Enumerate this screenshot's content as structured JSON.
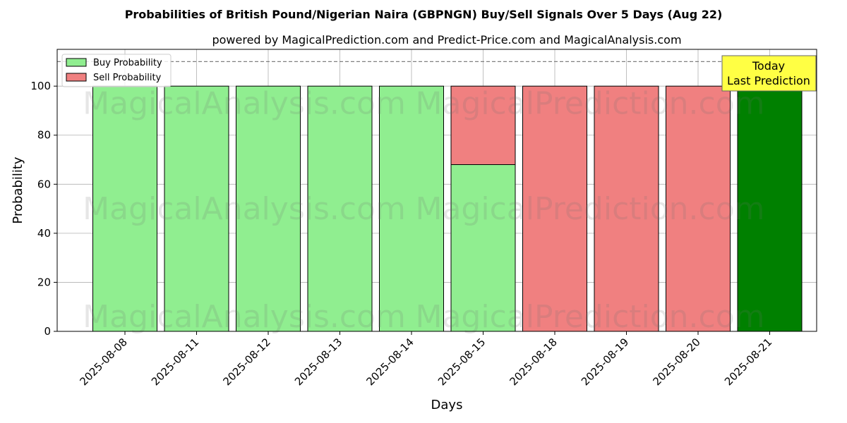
{
  "chart_data": {
    "type": "bar",
    "title": "Probabilities of British Pound/Nigerian Naira (GBPNGN) Buy/Sell Signals Over 5 Days (Aug 22)",
    "subtitle": "powered by MagicalPrediction.com and Predict-Price.com and MagicalAnalysis.com",
    "xlabel": "Days",
    "ylabel": "Probability",
    "ylim": [
      0,
      115
    ],
    "yticks": [
      0,
      20,
      40,
      60,
      80,
      100
    ],
    "grid": true,
    "legend_position": "top-left",
    "categories": [
      "2025-08-08",
      "2025-08-11",
      "2025-08-12",
      "2025-08-13",
      "2025-08-14",
      "2025-08-15",
      "2025-08-18",
      "2025-08-19",
      "2025-08-20",
      "2025-08-21"
    ],
    "series": [
      {
        "name": "Buy Probability",
        "color": "#90ee90",
        "values": [
          100,
          100,
          100,
          100,
          100,
          68,
          0,
          0,
          0,
          100
        ]
      },
      {
        "name": "Sell Probability",
        "color": "#f08080",
        "values": [
          0,
          0,
          0,
          0,
          0,
          32,
          100,
          100,
          100,
          0
        ]
      }
    ],
    "highlight": {
      "index": 9,
      "color": "#008000"
    },
    "reference_line": {
      "y": 110,
      "style": "dashed"
    },
    "annotation": {
      "lines": [
        "Today",
        "Last Prediction"
      ],
      "background": "#ffff44"
    },
    "watermarks": [
      "MagicalAnalysis.com",
      "MagicalPrediction.com"
    ]
  }
}
